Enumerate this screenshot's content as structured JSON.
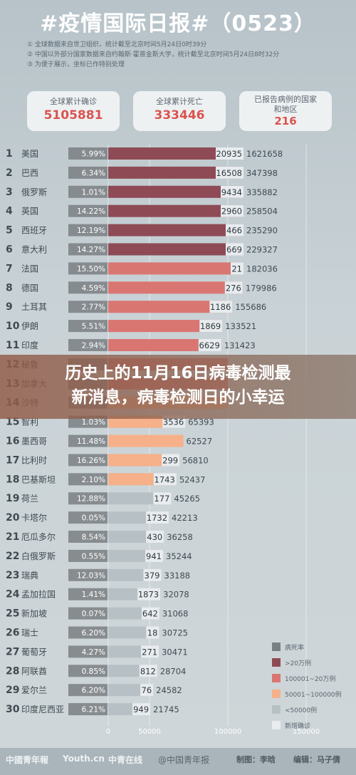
{
  "header": {
    "title": "#疫情国际日报#（0523）",
    "notes": [
      "① 全球数据来自世卫组织，统计截至北京时间5月24日0时39分",
      "② 中国以外部分国家数据来自约翰斯·霍普金斯大学，统计截至北京时间5月24日8时32分",
      "③ 为便于展示，坐标已作特别处理"
    ]
  },
  "summary": {
    "confirmed_label": "全球累计确诊",
    "confirmed_value": "5105881",
    "deaths_label": "全球累计死亡",
    "deaths_value": "333446",
    "countries_label": "已报告病例的国家和地区",
    "countries_value": "216"
  },
  "overlay": {
    "line1": "历史上的11月16日病毒检测最",
    "line2": "新消息，病毒检测日的小幸运"
  },
  "legend": [
    {
      "label": "病死率",
      "color": "#7a7f82"
    },
    {
      "label": ">20万例",
      "color": "#8e4b55"
    },
    {
      "label": "100001~20万例",
      "color": "#d97672"
    },
    {
      "label": "50001~100000例",
      "color": "#f6b08a"
    },
    {
      "label": "<50000例",
      "color": "#b7c1c5"
    },
    {
      "label": "新增确诊",
      "color": "#e8ecee"
    }
  ],
  "chart_data": {
    "type": "bar",
    "xlim": [
      0,
      150000
    ],
    "x_ticks": [
      "0",
      "50000",
      "100000",
      "150000"
    ],
    "rows": [
      {
        "rank": "1",
        "country": "美国",
        "rate": "5.99%",
        "new": "20935",
        "total": "1621658",
        "tier": 1
      },
      {
        "rank": "2",
        "country": "巴西",
        "rate": "6.34%",
        "new": "16508",
        "total": "347398",
        "tier": 1
      },
      {
        "rank": "3",
        "country": "俄罗斯",
        "rate": "1.01%",
        "new": "9434",
        "total": "335882",
        "tier": 1
      },
      {
        "rank": "4",
        "country": "英国",
        "rate": "14.22%",
        "new": "2960",
        "total": "258504",
        "tier": 1
      },
      {
        "rank": "5",
        "country": "西班牙",
        "rate": "12.19%",
        "new": "466",
        "total": "235290",
        "tier": 1
      },
      {
        "rank": "6",
        "country": "意大利",
        "rate": "14.27%",
        "new": "669",
        "total": "229327",
        "tier": 1
      },
      {
        "rank": "7",
        "country": "法国",
        "rate": "15.50%",
        "new": "21",
        "total": "182036",
        "tier": 2
      },
      {
        "rank": "8",
        "country": "德国",
        "rate": "4.59%",
        "new": "276",
        "total": "179986",
        "tier": 2
      },
      {
        "rank": "9",
        "country": "土耳其",
        "rate": "2.77%",
        "new": "1186",
        "total": "155686",
        "tier": 2
      },
      {
        "rank": "10",
        "country": "伊朗",
        "rate": "5.51%",
        "new": "1869",
        "total": "133521",
        "tier": 2
      },
      {
        "rank": "11",
        "country": "印度",
        "rate": "2.94%",
        "new": "6629",
        "total": "131423",
        "tier": 2
      },
      {
        "rank": "12",
        "country": "秘鲁",
        "rate": "",
        "new": "",
        "total": "",
        "tier": 2
      },
      {
        "rank": "13",
        "country": "加拿大",
        "rate": "",
        "new": "",
        "total": "",
        "tier": 2
      },
      {
        "rank": "14",
        "country": "沙特",
        "rate": "",
        "new": "",
        "total": "",
        "tier": 3
      },
      {
        "rank": "15",
        "country": "智利",
        "rate": "1.03%",
        "new": "3536",
        "total": "65393",
        "tier": 3
      },
      {
        "rank": "16",
        "country": "墨西哥",
        "rate": "11.48%",
        "new": "",
        "total": "62527",
        "tier": 3
      },
      {
        "rank": "17",
        "country": "比利时",
        "rate": "16.26%",
        "new": "299",
        "total": "56810",
        "tier": 3
      },
      {
        "rank": "18",
        "country": "巴基斯坦",
        "rate": "2.10%",
        "new": "1743",
        "total": "52437",
        "tier": 3
      },
      {
        "rank": "19",
        "country": "荷兰",
        "rate": "12.88%",
        "new": "177",
        "total": "45265",
        "tier": 4
      },
      {
        "rank": "20",
        "country": "卡塔尔",
        "rate": "0.05%",
        "new": "1732",
        "total": "42213",
        "tier": 4
      },
      {
        "rank": "21",
        "country": "厄瓜多尔",
        "rate": "8.54%",
        "new": "430",
        "total": "36258",
        "tier": 4
      },
      {
        "rank": "22",
        "country": "白俄罗斯",
        "rate": "0.55%",
        "new": "941",
        "total": "35244",
        "tier": 4
      },
      {
        "rank": "23",
        "country": "瑞典",
        "rate": "12.03%",
        "new": "379",
        "total": "33188",
        "tier": 4
      },
      {
        "rank": "24",
        "country": "孟加拉国",
        "rate": "1.41%",
        "new": "1873",
        "total": "32078",
        "tier": 4
      },
      {
        "rank": "25",
        "country": "新加坡",
        "rate": "0.07%",
        "new": "642",
        "total": "31068",
        "tier": 4
      },
      {
        "rank": "26",
        "country": "瑞士",
        "rate": "6.20%",
        "new": "18",
        "total": "30725",
        "tier": 4
      },
      {
        "rank": "27",
        "country": "葡萄牙",
        "rate": "4.27%",
        "new": "271",
        "total": "30471",
        "tier": 4
      },
      {
        "rank": "28",
        "country": "阿联酋",
        "rate": "0.85%",
        "new": "812",
        "total": "28704",
        "tier": 4
      },
      {
        "rank": "29",
        "country": "爱尔兰",
        "rate": "6.20%",
        "new": "76",
        "total": "24582",
        "tier": 4
      },
      {
        "rank": "30",
        "country": "印度尼西亚",
        "rate": "6.21%",
        "new": "949",
        "total": "21745",
        "tier": 4
      }
    ]
  },
  "footer": {
    "logos": [
      "中國青年報",
      "Youth.cn",
      "中青在线",
      "@中国青年报"
    ],
    "producer": "制图：李晗",
    "editor": "编辑：马子倩"
  }
}
